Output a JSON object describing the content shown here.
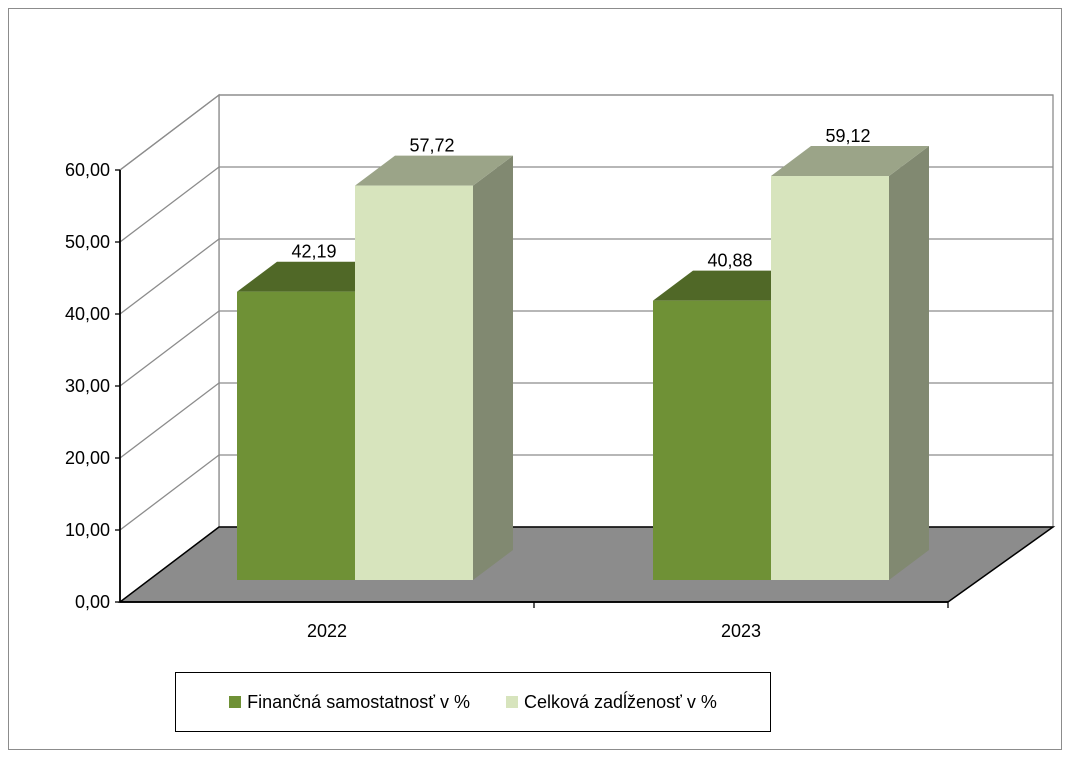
{
  "chart_data": {
    "type": "bar",
    "categories": [
      "2022",
      "2023"
    ],
    "series": [
      {
        "name": "Finančná samostatnosť v %",
        "values": [
          42.19,
          40.88
        ],
        "labels": [
          "42,19",
          "40,88"
        ],
        "color": "#6f9136"
      },
      {
        "name": "Celková zadĺženosť v %",
        "values": [
          57.72,
          59.12
        ],
        "labels": [
          "57,72",
          "59,12"
        ],
        "color": "#d7e4bd"
      }
    ],
    "yticks": [
      "0,00",
      "10,00",
      "20,00",
      "30,00",
      "40,00",
      "50,00",
      "60,00"
    ],
    "ylim": [
      0,
      60
    ],
    "grid": true,
    "three_d": true,
    "legend_position": "bottom",
    "colors": {
      "floor": "#8c8c8c"
    }
  }
}
